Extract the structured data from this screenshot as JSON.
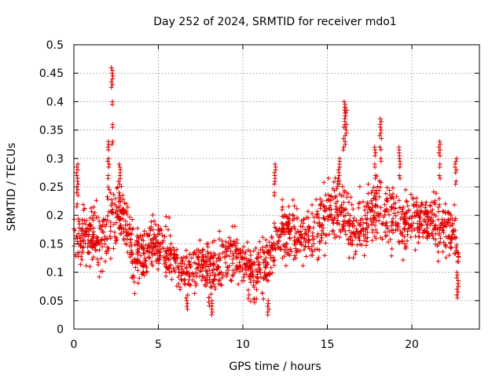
{
  "chart_data": {
    "type": "scatter",
    "title": "Day 252 of 2024, SRMTID for receiver mdo1",
    "xlabel": "GPS time / hours",
    "ylabel": "SRMTID / TECUs",
    "xlim": [
      0,
      24
    ],
    "ylim": [
      0,
      0.5
    ],
    "xticks": [
      0,
      5,
      10,
      15,
      20
    ],
    "yticks": [
      0,
      0.05,
      0.1,
      0.15,
      0.2,
      0.25,
      0.3,
      0.35,
      0.4,
      0.45,
      0.5
    ],
    "xtick_labels": [
      "0",
      "5",
      "10",
      "15",
      "20"
    ],
    "ytick_labels": [
      "0",
      "0.05",
      "0.1",
      "0.15",
      "0.2",
      "0.25",
      "0.3",
      "0.35",
      "0.4",
      "0.45",
      "0.5"
    ],
    "grid": true,
    "marker": "+",
    "color": "#e00000",
    "trend": {
      "x": [
        0,
        0.5,
        1,
        1.5,
        2,
        2.5,
        3,
        3.5,
        4,
        4.5,
        5,
        5.5,
        6,
        6.5,
        7,
        7.5,
        8,
        8.5,
        9,
        9.5,
        10,
        10.5,
        11,
        11.5,
        12,
        12.5,
        13,
        13.5,
        14,
        14.5,
        15,
        15.5,
        16,
        16.5,
        17,
        17.5,
        18,
        18.5,
        19,
        19.5,
        20,
        20.5,
        21,
        21.5,
        22,
        22.5,
        22.8
      ],
      "y": [
        0.17,
        0.16,
        0.17,
        0.15,
        0.18,
        0.19,
        0.2,
        0.13,
        0.12,
        0.15,
        0.15,
        0.14,
        0.12,
        0.1,
        0.1,
        0.12,
        0.1,
        0.11,
        0.13,
        0.13,
        0.12,
        0.1,
        0.1,
        0.12,
        0.16,
        0.17,
        0.18,
        0.16,
        0.16,
        0.18,
        0.2,
        0.22,
        0.2,
        0.17,
        0.18,
        0.2,
        0.21,
        0.2,
        0.2,
        0.18,
        0.2,
        0.19,
        0.19,
        0.19,
        0.17,
        0.17,
        0.11
      ],
      "spread": [
        0.04,
        0.04,
        0.04,
        0.04,
        0.05,
        0.05,
        0.05,
        0.04,
        0.04,
        0.04,
        0.04,
        0.04,
        0.04,
        0.03,
        0.03,
        0.04,
        0.04,
        0.04,
        0.04,
        0.04,
        0.04,
        0.04,
        0.04,
        0.04,
        0.04,
        0.04,
        0.04,
        0.04,
        0.04,
        0.05,
        0.05,
        0.06,
        0.05,
        0.04,
        0.04,
        0.05,
        0.05,
        0.05,
        0.05,
        0.04,
        0.04,
        0.04,
        0.04,
        0.05,
        0.04,
        0.04,
        0.03
      ]
    },
    "n_points": 1800,
    "spikes": [
      {
        "x": 0.2,
        "y": [
          0.22,
          0.24,
          0.25,
          0.26,
          0.27,
          0.28,
          0.29
        ]
      },
      {
        "x": 2.25,
        "y": [
          0.33,
          0.36,
          0.4,
          0.43,
          0.44,
          0.45,
          0.46
        ]
      },
      {
        "x": 2.05,
        "y": [
          0.25,
          0.27,
          0.29,
          0.3,
          0.32,
          0.33
        ]
      },
      {
        "x": 2.7,
        "y": [
          0.24,
          0.26,
          0.27,
          0.28,
          0.29
        ]
      },
      {
        "x": 11.9,
        "y": [
          0.24,
          0.26,
          0.27,
          0.28,
          0.29
        ]
      },
      {
        "x": 15.7,
        "y": [
          0.26,
          0.27,
          0.28,
          0.29,
          0.3
        ]
      },
      {
        "x": 16.0,
        "y": [
          0.32,
          0.34,
          0.36,
          0.37,
          0.38,
          0.39,
          0.4
        ]
      },
      {
        "x": 16.1,
        "y": [
          0.33,
          0.35,
          0.36,
          0.38,
          0.39
        ]
      },
      {
        "x": 18.15,
        "y": [
          0.3,
          0.32,
          0.34,
          0.35,
          0.36,
          0.37
        ]
      },
      {
        "x": 17.8,
        "y": [
          0.27,
          0.29,
          0.31,
          0.32
        ]
      },
      {
        "x": 19.3,
        "y": [
          0.27,
          0.29,
          0.3,
          0.31,
          0.32
        ]
      },
      {
        "x": 21.65,
        "y": [
          0.27,
          0.29,
          0.31,
          0.32,
          0.33
        ]
      },
      {
        "x": 22.6,
        "y": [
          0.26,
          0.28,
          0.29,
          0.3
        ]
      },
      {
        "x": 22.7,
        "y": [
          0.06,
          0.07,
          0.08,
          0.09,
          0.1
        ]
      },
      {
        "x": 8.2,
        "y": [
          0.03,
          0.04,
          0.05
        ]
      },
      {
        "x": 11.5,
        "y": [
          0.03,
          0.04,
          0.05
        ]
      },
      {
        "x": 6.7,
        "y": [
          0.04,
          0.05,
          0.06
        ]
      }
    ]
  }
}
